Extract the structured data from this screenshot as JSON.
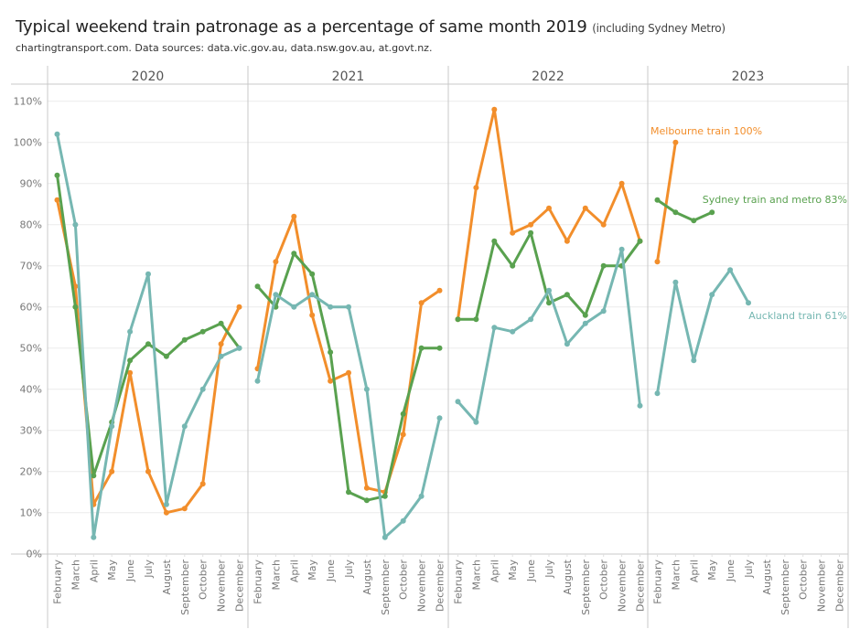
{
  "title": "Typical weekend train patronage as a percentage of same month 2019",
  "title_note": "(including Sydney Metro)",
  "subtitle": "chartingtransport.com. Data sources: data.vic.gov.au, data.nsw.gov.au, at.govt.nz.",
  "chart_data": {
    "type": "line",
    "title": "Typical weekend train patronage as a percentage of same month 2019",
    "xlabel": "",
    "ylabel": "",
    "ylim": [
      0,
      110
    ],
    "yticks": [
      0,
      10,
      20,
      30,
      40,
      50,
      60,
      70,
      80,
      90,
      100,
      110
    ],
    "ytick_labels": [
      "0%",
      "10%",
      "20%",
      "30%",
      "40%",
      "50%",
      "60%",
      "70%",
      "80%",
      "90%",
      "100%",
      "110%"
    ],
    "grid": true,
    "legend": "none (end-of-line labels at right)",
    "panels": [
      "2020",
      "2021",
      "2022",
      "2023"
    ],
    "categories": [
      "February",
      "March",
      "April",
      "May",
      "June",
      "July",
      "August",
      "September",
      "October",
      "November",
      "December"
    ],
    "series": [
      {
        "name": "Melbourne train",
        "color": "#F28E2B",
        "end_label": "Melbourne train 100%",
        "values": {
          "2020": [
            86,
            65,
            12,
            20,
            44,
            20,
            10,
            11,
            17,
            51,
            60
          ],
          "2021": [
            45,
            71,
            82,
            58,
            42,
            44,
            16,
            15,
            29,
            61,
            64
          ],
          "2022": [
            57,
            89,
            108,
            78,
            80,
            84,
            76,
            84,
            80,
            90,
            76
          ],
          "2023": [
            71,
            100,
            null,
            null,
            null,
            null,
            null,
            null,
            null,
            null,
            null
          ]
        }
      },
      {
        "name": "Sydney train and metro",
        "color": "#59A14F",
        "end_label": "Sydney train and metro 83%",
        "values": {
          "2020": [
            92,
            60,
            19,
            32,
            47,
            51,
            48,
            52,
            54,
            56,
            50
          ],
          "2021": [
            65,
            60,
            73,
            68,
            49,
            15,
            13,
            14,
            34,
            50,
            50
          ],
          "2022": [
            57,
            57,
            76,
            70,
            78,
            61,
            63,
            58,
            70,
            70,
            76
          ],
          "2023": [
            86,
            83,
            81,
            83,
            null,
            null,
            null,
            null,
            null,
            null,
            null
          ]
        }
      },
      {
        "name": "Auckland train",
        "color": "#76B7B2",
        "end_label": "Auckland train 61%",
        "values": {
          "2020": [
            102,
            80,
            4,
            31,
            54,
            68,
            12,
            31,
            40,
            48,
            50
          ],
          "2021": [
            42,
            63,
            60,
            63,
            60,
            60,
            40,
            4,
            8,
            14,
            33
          ],
          "2022": [
            37,
            32,
            55,
            54,
            57,
            64,
            51,
            56,
            59,
            74,
            36
          ],
          "2023": [
            39,
            66,
            47,
            63,
            69,
            61,
            null,
            null,
            null,
            null,
            null
          ]
        }
      }
    ]
  }
}
